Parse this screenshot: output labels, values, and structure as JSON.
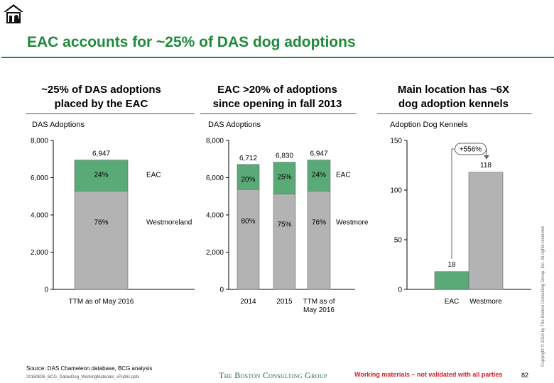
{
  "header": {
    "title": "EAC accounts for ~25% of DAS dog adoptions",
    "logo_icon": "house-logo-icon"
  },
  "panels": [
    {
      "title_line1": "~25% of DAS adoptions",
      "title_line2": "placed by the EAC",
      "ylabel": "DAS Adoptions"
    },
    {
      "title_line1": "EAC >20% of adoptions",
      "title_line2": "since opening in fall 2013",
      "ylabel": "DAS Adoptions"
    },
    {
      "title_line1": "Main location has ~6X",
      "title_line2": "dog adoption kennels",
      "ylabel": "Adoption Dog Kennels"
    }
  ],
  "chart_data": [
    {
      "type": "bar",
      "stacked": true,
      "ylabel": "DAS Adoptions",
      "ylim": [
        0,
        8000
      ],
      "yticks": [
        "0",
        "2,000",
        "4,000",
        "6,000",
        "8,000"
      ],
      "categories": [
        "TTM as of May 2016"
      ],
      "series": [
        {
          "name": "Westmoreland",
          "values": [
            5280
          ],
          "labels": [
            "76%"
          ]
        },
        {
          "name": "EAC",
          "values": [
            1667
          ],
          "labels": [
            "24%"
          ]
        }
      ],
      "totals": [
        "6,947"
      ]
    },
    {
      "type": "bar",
      "stacked": true,
      "ylabel": "DAS Adoptions",
      "ylim": [
        0,
        8000
      ],
      "yticks": [
        "0",
        "2,000",
        "4,000",
        "6,000",
        "8,000"
      ],
      "categories": [
        "2014",
        "2015",
        "TTM as of May 2016"
      ],
      "category_lines": [
        [
          "2014"
        ],
        [
          "2015"
        ],
        [
          "TTM as of",
          "May 2016"
        ]
      ],
      "series": [
        {
          "name": "Westmore",
          "values": [
            5370,
            5120,
            5280
          ],
          "labels": [
            "80%",
            "75%",
            "76%"
          ]
        },
        {
          "name": "EAC",
          "values": [
            1342,
            1710,
            1667
          ],
          "labels": [
            "20%",
            "25%",
            "24%"
          ]
        }
      ],
      "totals": [
        "6,712",
        "6,830",
        "6,947"
      ]
    },
    {
      "type": "bar",
      "ylabel": "Adoption Dog Kennels",
      "ylim": [
        0,
        150
      ],
      "yticks": [
        "0",
        "50",
        "100",
        "150"
      ],
      "categories": [
        "EAC",
        "Westmore"
      ],
      "values": [
        18,
        118
      ],
      "value_labels": [
        "18",
        "118"
      ],
      "colors": [
        "#5aaa78",
        "#b3b3b3"
      ],
      "annotation": "+556%"
    }
  ],
  "colors": {
    "green": "#5aaa78",
    "gray": "#b3b3b3",
    "title_green": "#1f8a3a",
    "warning_red": "#d0212a"
  },
  "footer": {
    "source": "Source: DAS Chameleon database, BCG analysis",
    "file": "20160826_BCG_DallasDog_WorkingMaterials_vPublic.pptx",
    "brand": "The Boston Consulting Group",
    "warning": "Working materials – not validated with all parties",
    "page": "82",
    "copyright": "Copyright © 2016 by The Boston Consulting Group, Inc. All rights reserved."
  }
}
